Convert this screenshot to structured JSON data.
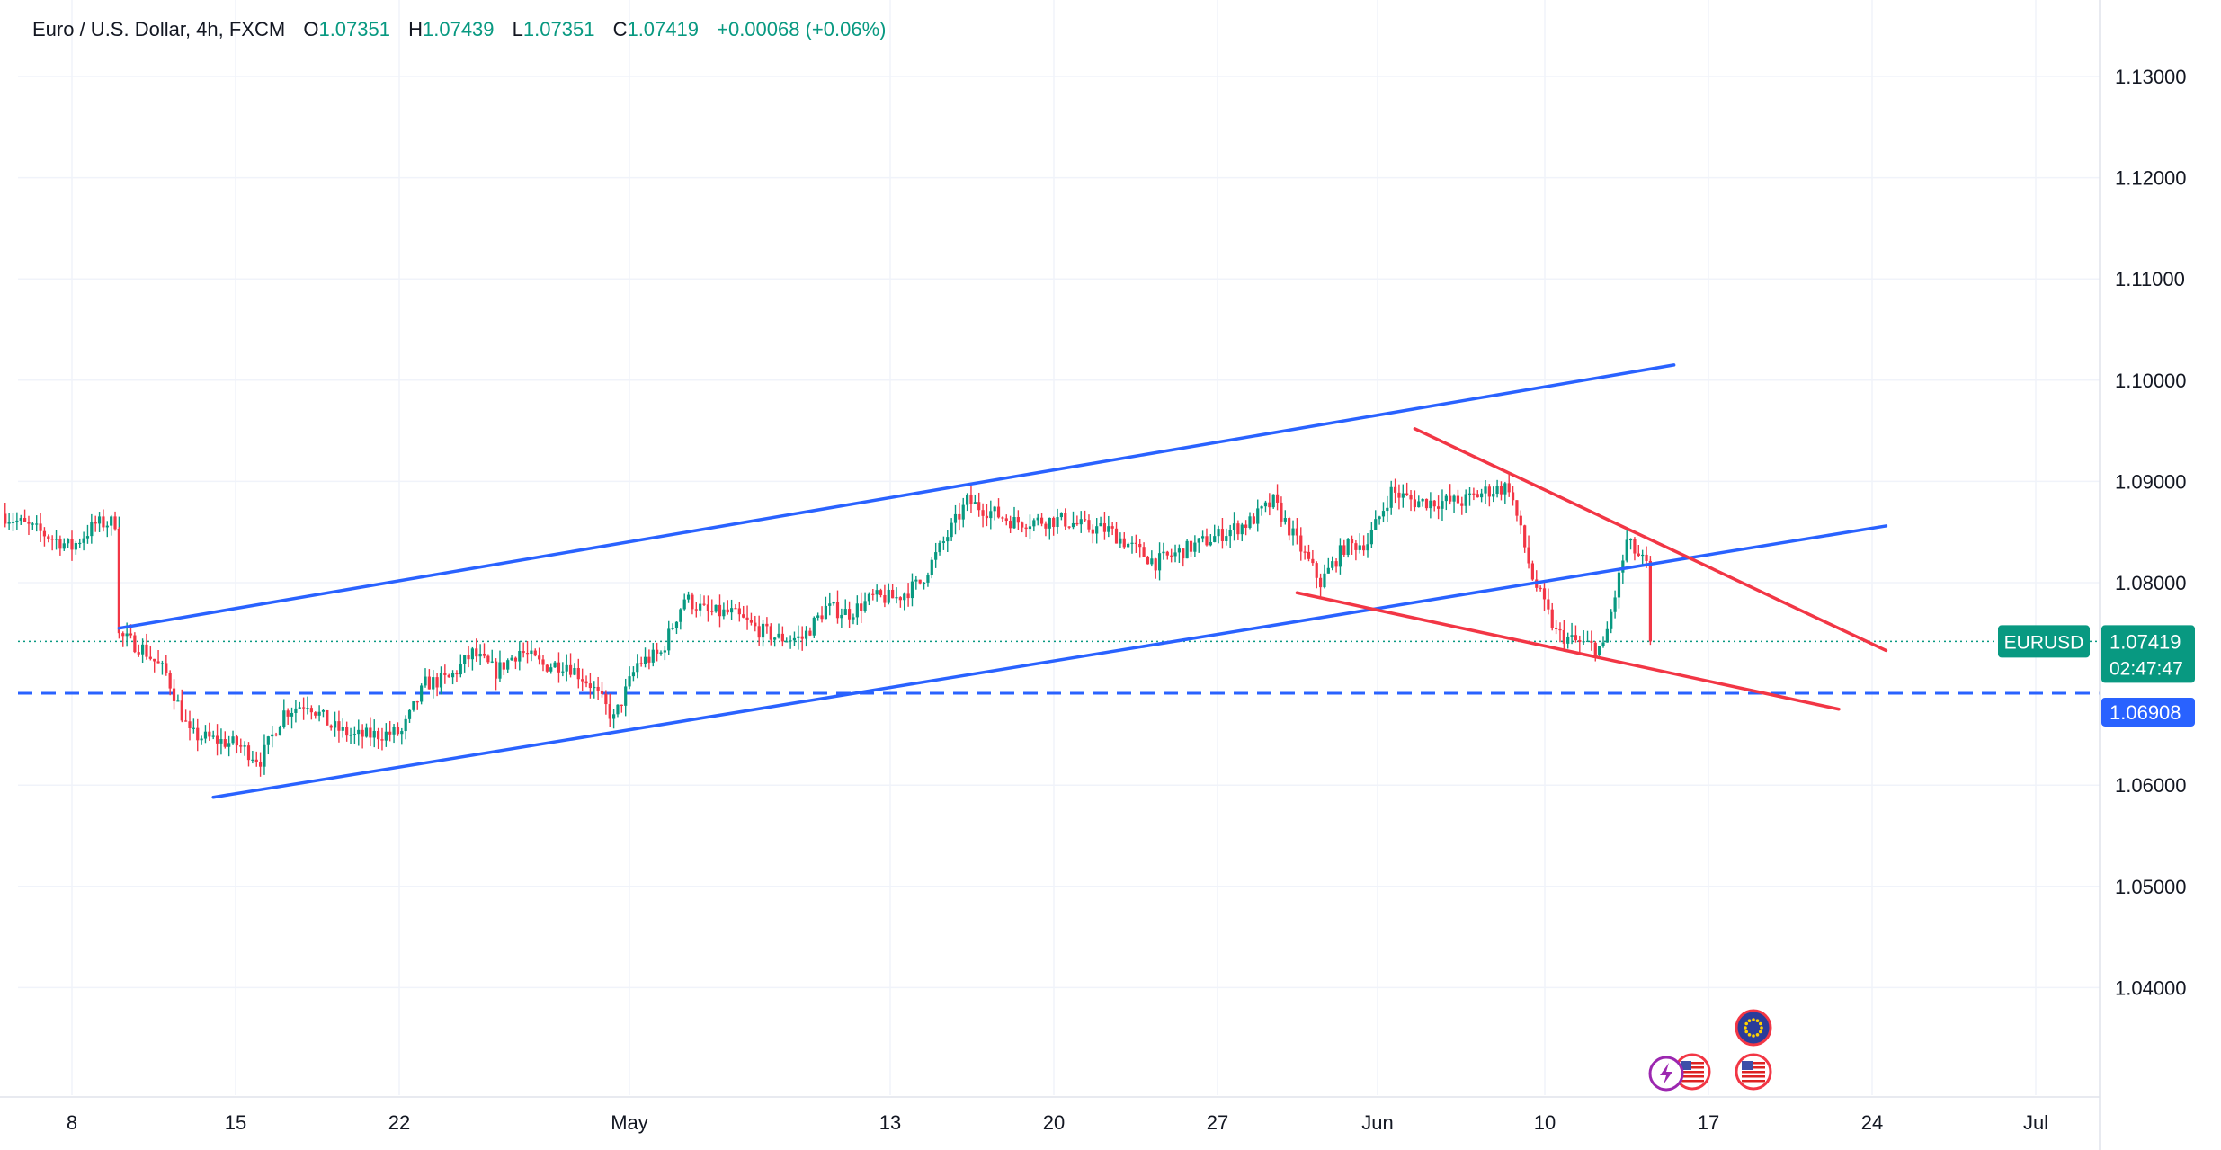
{
  "legend": {
    "symbol": "Euro / U.S. Dollar, 4h, FXCM",
    "o_label": "O",
    "o": "1.07351",
    "h_label": "H",
    "h": "1.07439",
    "l_label": "L",
    "l": "1.07351",
    "c_label": "C",
    "c": "1.07419",
    "change": "+0.00068 (+0.06%)"
  },
  "colors": {
    "up": "#089981",
    "down": "#f23645",
    "blue_line": "#2962ff",
    "red_line": "#f23645",
    "grid": "#f0f3fa",
    "axis_text": "#131722"
  },
  "price_scale": {
    "labels": [
      "1.13000",
      "1.12000",
      "1.11000",
      "1.10000",
      "1.09000",
      "1.08000",
      "1.06000",
      "1.05000",
      "1.04000"
    ]
  },
  "time_scale": {
    "labels": [
      "8",
      "15",
      "22",
      "May",
      "13",
      "20",
      "27",
      "Jun",
      "10",
      "17",
      "24",
      "Jul"
    ]
  },
  "badges": {
    "symbol": "EURUSD",
    "last_price": "1.07419",
    "countdown": "02:47:47",
    "level_price": "1.06908"
  },
  "events": {
    "icons": [
      "eu-flag-icon",
      "us-flag-icon",
      "lightning-icon",
      "us-flag-icon"
    ]
  },
  "chart_data": {
    "type": "candlestick",
    "title": "Euro / U.S. Dollar, 4h, FXCM",
    "timeframe": "4h",
    "x_range": [
      "2024-04-05",
      "2024-07-03"
    ],
    "ylim": [
      1.031,
      1.136
    ],
    "grid": true,
    "price_path_close": [
      [
        "2024-04-05",
        1.0868
      ],
      [
        "2024-04-08",
        1.0835
      ],
      [
        "2024-04-09",
        1.0858
      ],
      [
        "2024-04-10",
        1.086
      ],
      [
        "2024-04-10",
        1.0748
      ],
      [
        "2024-04-11",
        1.0735
      ],
      [
        "2024-04-12",
        1.071
      ],
      [
        "2024-04-13",
        1.065
      ],
      [
        "2024-04-15",
        1.064
      ],
      [
        "2024-04-16",
        1.0625
      ],
      [
        "2024-04-17",
        1.0672
      ],
      [
        "2024-04-18",
        1.0682
      ],
      [
        "2024-04-19",
        1.0658
      ],
      [
        "2024-04-20",
        1.0648
      ],
      [
        "2024-04-22",
        1.0652
      ],
      [
        "2024-04-23",
        1.07
      ],
      [
        "2024-04-24",
        1.0705
      ],
      [
        "2024-04-25",
        1.073
      ],
      [
        "2024-04-26",
        1.0712
      ],
      [
        "2024-04-27",
        1.0733
      ],
      [
        "2024-04-28",
        1.0718
      ],
      [
        "2024-04-29",
        1.072
      ],
      [
        "2024-04-30",
        1.07
      ],
      [
        "2024-05-01",
        1.0665
      ],
      [
        "2024-05-02",
        1.072
      ],
      [
        "2024-05-03",
        1.073
      ],
      [
        "2024-05-04",
        1.0785
      ],
      [
        "2024-05-05",
        1.077
      ],
      [
        "2024-05-06",
        1.077
      ],
      [
        "2024-05-07",
        1.0755
      ],
      [
        "2024-05-08",
        1.0745
      ],
      [
        "2024-05-09",
        1.0745
      ],
      [
        "2024-05-10",
        1.0775
      ],
      [
        "2024-05-11",
        1.077
      ],
      [
        "2024-05-12",
        1.0785
      ],
      [
        "2024-05-13",
        1.0785
      ],
      [
        "2024-05-14",
        1.08
      ],
      [
        "2024-05-15",
        1.084
      ],
      [
        "2024-05-16",
        1.088
      ],
      [
        "2024-05-17",
        1.087
      ],
      [
        "2024-05-18",
        1.086
      ],
      [
        "2024-05-20",
        1.0862
      ],
      [
        "2024-05-21",
        1.0855
      ],
      [
        "2024-05-22",
        1.0852
      ],
      [
        "2024-05-23",
        1.0835
      ],
      [
        "2024-05-24",
        1.082
      ],
      [
        "2024-05-25",
        1.083
      ],
      [
        "2024-05-27",
        1.085
      ],
      [
        "2024-05-28",
        1.086
      ],
      [
        "2024-05-29",
        1.088
      ],
      [
        "2024-05-30",
        1.084
      ],
      [
        "2024-05-31",
        1.08
      ],
      [
        "2024-06-01",
        1.0835
      ],
      [
        "2024-06-02",
        1.084
      ],
      [
        "2024-06-03",
        1.089
      ],
      [
        "2024-06-04",
        1.088
      ],
      [
        "2024-06-05",
        1.088
      ],
      [
        "2024-06-06",
        1.088
      ],
      [
        "2024-06-07",
        1.089
      ],
      [
        "2024-06-08",
        1.0895
      ],
      [
        "2024-06-09",
        1.0805
      ],
      [
        "2024-06-10",
        1.075
      ],
      [
        "2024-06-11",
        1.074
      ],
      [
        "2024-06-12",
        1.0735
      ],
      [
        "2024-06-13",
        1.084
      ],
      [
        "2024-06-14",
        1.0812
      ],
      [
        "2024-06-14",
        1.0742
      ]
    ],
    "last_close": 1.07419,
    "trendlines": [
      {
        "name": "blue upper",
        "color": "#2962ff",
        "from": [
          "2024-04-10",
          1.0755
        ],
        "to": [
          "2024-06-15",
          1.1015
        ]
      },
      {
        "name": "blue lower",
        "color": "#2962ff",
        "from": [
          "2024-04-14",
          1.0588
        ],
        "to": [
          "2024-06-24",
          1.0856
        ]
      },
      {
        "name": "red upper",
        "color": "#f23645",
        "from": [
          "2024-06-04",
          1.0952
        ],
        "to": [
          "2024-06-24",
          1.0733
        ]
      },
      {
        "name": "red lower",
        "color": "#f23645",
        "from": [
          "2024-05-30",
          1.079
        ],
        "to": [
          "2024-06-22",
          1.0675
        ]
      }
    ],
    "horizontal_levels": [
      {
        "price": 1.06908,
        "style": "dashed",
        "color": "#2962ff"
      },
      {
        "price": 1.07419,
        "style": "dotted",
        "color": "#089981"
      }
    ]
  }
}
